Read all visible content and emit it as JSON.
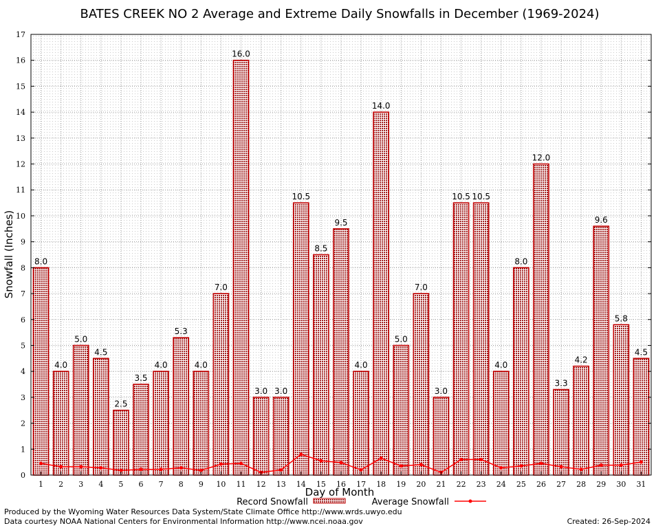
{
  "chart_data": {
    "type": "bar",
    "title": "BATES CREEK NO 2 Average and Extreme Daily Snowfalls in December (1969-2024)",
    "xlabel": "Day of Month",
    "ylabel": "Snowfall (Inches)",
    "ylim": [
      0,
      17
    ],
    "yticks": [
      "0",
      "1",
      "2",
      "3",
      "4",
      "5",
      "6",
      "7",
      "8",
      "9",
      "10",
      "11",
      "12",
      "13",
      "14",
      "15",
      "16",
      "17"
    ],
    "categories": [
      "1",
      "2",
      "3",
      "4",
      "5",
      "6",
      "7",
      "8",
      "9",
      "10",
      "11",
      "12",
      "13",
      "14",
      "15",
      "16",
      "17",
      "18",
      "19",
      "20",
      "21",
      "22",
      "23",
      "24",
      "25",
      "26",
      "27",
      "28",
      "29",
      "30",
      "31"
    ],
    "grid": true,
    "legend_position": "bottom",
    "series": [
      {
        "name": "Record Snowfall",
        "kind": "bar",
        "color": "#c00000",
        "values": [
          8.0,
          4.0,
          5.0,
          4.5,
          2.5,
          3.5,
          4.0,
          5.3,
          4.0,
          7.0,
          16.0,
          3.0,
          3.0,
          10.5,
          8.5,
          9.5,
          4.0,
          14.0,
          5.0,
          7.0,
          3.0,
          10.5,
          10.5,
          4.0,
          8.0,
          12.0,
          3.3,
          4.2,
          9.6,
          5.8,
          4.5
        ],
        "labels": [
          "8.0",
          "4.0",
          "5.0",
          "4.5",
          "2.5",
          "3.5",
          "4.0",
          "5.3",
          "4.0",
          "7.0",
          "16.0",
          "3.0",
          "3.0",
          "10.5",
          "8.5",
          "9.5",
          "4.0",
          "14.0",
          "5.0",
          "7.0",
          "3.0",
          "10.5",
          "10.5",
          "4.0",
          "8.0",
          "12.0",
          "3.3",
          "4.2",
          "9.6",
          "5.8",
          "4.5"
        ]
      },
      {
        "name": "Average Snowfall",
        "kind": "line",
        "color": "#ff0000",
        "values": [
          0.45,
          0.32,
          0.32,
          0.28,
          0.18,
          0.22,
          0.22,
          0.28,
          0.18,
          0.42,
          0.45,
          0.1,
          0.2,
          0.8,
          0.55,
          0.48,
          0.2,
          0.65,
          0.35,
          0.4,
          0.1,
          0.6,
          0.6,
          0.28,
          0.35,
          0.45,
          0.32,
          0.22,
          0.38,
          0.38,
          0.5
        ]
      }
    ]
  },
  "footer": {
    "produced_by": "Produced by the Wyoming Water Resources Data System/State Climate Office http://www.wrds.uwyo.edu",
    "courtesy": "Data courtesy NOAA National Centers for Environmental Information http://www.ncei.noaa.gov",
    "created": "Created:  26-Sep-2024"
  }
}
